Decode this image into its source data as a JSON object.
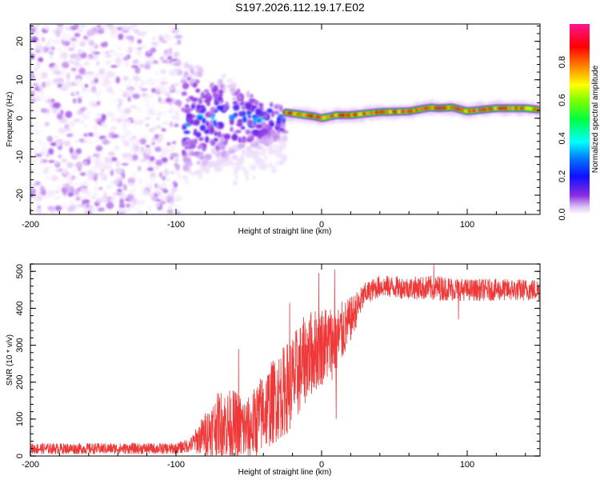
{
  "title": "S197.2026.112.19.17.E02",
  "chart_data": [
    {
      "type": "heatmap",
      "name": "spectrogram",
      "xlabel": "Height of straight line (km)",
      "ylabel": "Frequency (Hz)",
      "xlim": [
        -200,
        150
      ],
      "ylim": [
        -25,
        24.5
      ],
      "xticks": [
        -200,
        -100,
        0,
        100
      ],
      "xtick_labels": [
        "-200",
        "-100",
        "0",
        "100"
      ],
      "yticks": [
        -20,
        -10,
        0,
        10,
        20
      ],
      "ytick_labels": [
        "-20",
        "-10",
        "0",
        "10",
        "20"
      ],
      "grid": false,
      "colorbar": {
        "label": "Normalized spectral amplitude",
        "range": [
          0,
          1
        ],
        "ticks": [
          0.0,
          0.2,
          0.4,
          0.6,
          0.8
        ],
        "tick_labels": [
          "0.0",
          "0.2",
          "0.4",
          "0.6",
          "0.8"
        ],
        "colormap": [
          "#ffffff",
          "#d9b8f5",
          "#8a2be2",
          "#1e1eff",
          "#00ffff",
          "#00ff00",
          "#ffff00",
          "#ff8000",
          "#ff0000",
          "#ff1493"
        ]
      },
      "regions": [
        {
          "x_range": [
            -200,
            -105
          ],
          "description": "broadband noise",
          "amplitude_range": [
            0.0,
            0.15
          ]
        },
        {
          "x_range": [
            -95,
            -25
          ],
          "description": "scattered signal",
          "amplitude_range": [
            0.1,
            0.4
          ]
        },
        {
          "x_range": [
            -25,
            150
          ],
          "description": "narrow tone near 1-3 Hz",
          "amplitude_range": [
            0.4,
            1.0
          ]
        }
      ],
      "tone_track": {
        "x": [
          -25,
          -15,
          -5,
          0,
          10,
          20,
          40,
          60,
          75,
          80,
          90,
          100,
          120,
          140,
          150
        ],
        "freq": [
          1.5,
          1.0,
          0.5,
          0.0,
          0.8,
          0.8,
          1.6,
          1.8,
          2.8,
          2.6,
          2.8,
          1.8,
          2.6,
          2.6,
          2.2
        ]
      }
    },
    {
      "type": "line",
      "name": "snr",
      "xlabel": "Height of straight line (km)",
      "ylabel": "SNR (10 * v/v)",
      "xlim": [
        -200,
        150
      ],
      "ylim": [
        0,
        520
      ],
      "xticks": [
        -200,
        -100,
        0,
        100
      ],
      "xtick_labels": [
        "-200",
        "-100",
        "0",
        "100"
      ],
      "yticks": [
        0,
        100,
        200,
        300,
        400,
        500
      ],
      "ytick_labels": [
        "0",
        "100",
        "200",
        "300",
        "400",
        "500"
      ],
      "grid": false,
      "color": "#ee2222",
      "envelope": {
        "x": [
          -200,
          -150,
          -100,
          -90,
          -80,
          -70,
          -60,
          -50,
          -40,
          -30,
          -20,
          -10,
          0,
          10,
          20,
          30,
          40,
          60,
          80,
          100,
          120,
          150
        ],
        "mean": [
          20,
          20,
          20,
          30,
          60,
          90,
          80,
          70,
          120,
          160,
          200,
          270,
          300,
          310,
          370,
          440,
          460,
          455,
          455,
          450,
          450,
          450
        ],
        "spread": [
          15,
          15,
          15,
          20,
          60,
          90,
          100,
          90,
          110,
          120,
          130,
          120,
          110,
          100,
          60,
          30,
          30,
          30,
          35,
          30,
          30,
          30
        ]
      },
      "notable_points": [
        {
          "x": -57,
          "y": 290
        },
        {
          "x": -22,
          "y": 415
        },
        {
          "x": -2,
          "y": 495
        },
        {
          "x": 9,
          "y": 505
        },
        {
          "x": 10,
          "y": 100
        },
        {
          "x": 77,
          "y": 520
        },
        {
          "x": 94,
          "y": 370
        }
      ]
    }
  ]
}
